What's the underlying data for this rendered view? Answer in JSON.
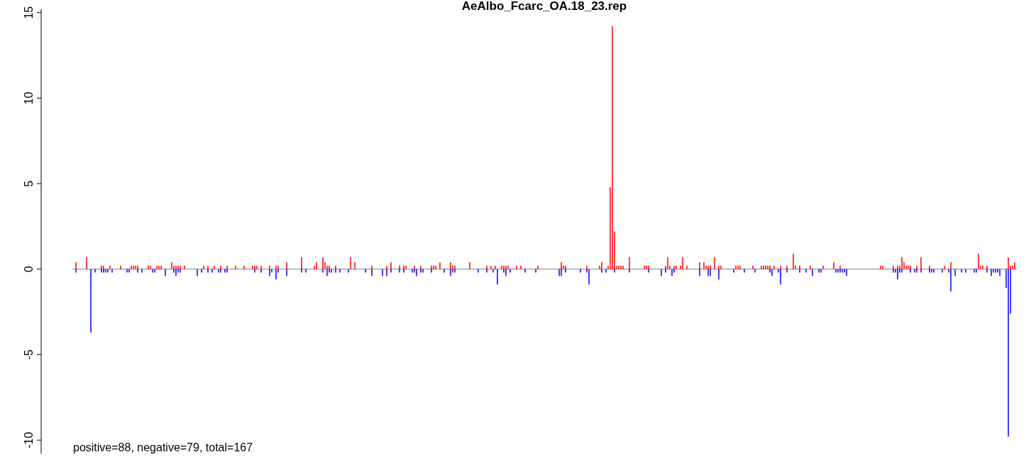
{
  "chart_data": {
    "type": "bar",
    "title": "AeAlbo_Fcarc_OA.18_23.rep",
    "annotations": [
      "positive=88, negative=79, total=167"
    ],
    "ylim": [
      -10.8,
      15.2
    ],
    "yticks": [
      -10,
      -5,
      0,
      5,
      10,
      15
    ],
    "ref_lines": [
      {
        "axis": "y",
        "value": 0,
        "color": "#808080"
      }
    ],
    "categories": [
      null,
      null,
      null,
      null,
      null,
      null,
      null,
      null,
      null,
      null,
      null,
      null,
      null,
      null,
      null,
      null,
      null,
      null,
      null,
      null,
      null,
      null,
      null,
      null,
      null,
      null,
      null,
      null,
      null,
      null,
      null,
      null,
      null,
      null,
      null,
      null,
      null,
      null,
      null,
      null,
      null,
      null,
      null,
      null,
      null,
      null,
      null,
      null,
      null,
      null,
      null,
      null,
      null,
      null,
      null,
      null,
      null,
      null,
      null,
      null,
      null,
      null,
      null,
      null,
      null,
      null,
      null,
      null,
      null,
      null,
      null,
      null,
      null,
      null,
      null,
      null,
      null,
      null,
      null,
      null,
      null,
      null,
      null,
      null,
      null,
      null,
      null,
      null,
      null,
      null,
      null,
      null,
      null,
      null,
      null,
      null,
      null,
      null,
      null,
      null,
      null,
      null,
      null,
      null,
      null,
      null,
      null,
      null,
      null,
      null,
      null,
      null,
      null,
      null,
      null,
      null,
      null,
      null,
      null,
      null,
      null,
      null,
      null,
      null,
      null,
      null,
      null,
      null,
      null,
      null,
      null,
      null,
      null,
      null,
      null,
      null,
      null,
      null,
      null,
      null,
      null,
      null,
      null,
      null,
      null,
      null,
      null,
      null,
      null,
      null,
      null,
      null,
      null,
      null,
      null,
      null,
      null,
      null,
      null,
      null,
      null,
      null,
      null,
      null,
      null,
      null,
      null,
      null,
      null,
      null,
      null,
      null,
      null,
      null,
      null,
      null,
      null,
      null,
      null,
      null,
      null,
      null,
      null,
      null,
      null,
      null,
      null,
      null,
      null,
      null,
      null,
      null,
      null,
      null,
      null,
      null,
      null,
      null,
      null,
      null,
      null,
      null,
      null,
      null,
      null,
      null,
      null,
      null,
      null,
      null,
      null,
      null,
      null,
      null,
      null,
      null,
      null,
      null,
      null,
      null,
      null,
      null,
      null,
      null,
      null,
      null,
      null,
      null,
      null,
      null,
      null,
      null,
      null,
      null,
      null,
      null,
      null,
      null,
      null,
      null,
      null,
      null,
      null,
      null,
      null,
      null,
      null,
      null,
      null,
      null,
      null,
      null,
      null,
      null,
      null,
      null,
      null,
      null,
      null,
      null,
      null,
      null,
      null,
      null,
      null,
      null,
      null,
      null,
      null,
      null,
      null,
      null,
      null,
      null,
      null,
      null,
      null,
      null,
      null,
      null,
      null,
      null,
      null,
      null,
      null,
      null,
      null,
      null,
      null,
      null,
      null,
      null,
      null,
      null,
      null,
      null,
      null,
      null,
      null,
      null,
      null,
      null,
      null,
      null,
      null,
      null,
      null,
      null,
      null,
      null,
      null,
      null,
      null,
      null,
      null,
      null,
      null,
      null,
      null,
      null,
      null,
      null,
      null,
      null,
      null,
      null,
      null,
      null,
      null,
      null,
      null,
      null,
      null,
      null,
      null,
      null,
      null,
      null,
      null,
      null,
      null,
      null,
      null,
      null,
      null,
      null,
      null,
      null,
      null,
      null,
      null,
      null,
      null,
      null,
      null,
      null,
      null,
      null,
      null,
      null,
      null,
      null,
      null,
      null,
      null,
      null,
      null,
      null,
      null,
      null,
      null,
      null,
      null,
      null,
      null,
      null,
      null,
      null,
      null,
      null,
      null,
      null,
      null,
      null,
      null,
      null,
      null,
      null,
      null,
      null,
      null,
      null,
      null,
      null,
      null,
      null,
      null,
      null,
      null,
      null,
      null,
      null,
      null,
      null,
      null,
      null,
      null,
      null,
      null,
      null,
      null,
      null,
      null,
      null,
      null,
      null,
      null,
      null,
      null,
      null,
      null,
      null,
      null,
      null,
      null,
      null,
      null,
      null,
      null,
      null,
      null,
      null,
      null,
      null,
      null,
      null,
      null,
      null,
      null,
      null,
      null,
      null,
      null
    ],
    "series": [
      {
        "color": "#ff0000",
        "values": [
          null,
          0.4,
          null,
          null,
          null,
          null,
          0.7,
          null,
          null,
          null,
          null,
          null,
          null,
          0.2,
          0.2,
          null,
          null,
          0.2,
          null,
          null,
          null,
          null,
          0.2,
          null,
          null,
          null,
          null,
          0.2,
          0.2,
          0.2,
          0.2,
          null,
          null,
          null,
          null,
          0.2,
          0.2,
          null,
          null,
          0.2,
          0.2,
          0.2,
          null,
          null,
          null,
          null,
          0.4,
          0.2,
          0.2,
          0.2,
          0.2,
          null,
          0.2,
          null,
          null,
          null,
          null,
          null,
          null,
          null,
          null,
          0.2,
          null,
          0.2,
          null,
          null,
          0.2,
          null,
          null,
          0.2,
          null,
          null,
          0.2,
          null,
          null,
          null,
          0.2,
          null,
          null,
          null,
          0.2,
          null,
          null,
          null,
          0.2,
          0.2,
          0.2,
          null,
          0.2,
          null,
          null,
          null,
          0.2,
          null,
          null,
          0.2,
          0.2,
          null,
          null,
          null,
          0.4,
          null,
          null,
          null,
          null,
          null,
          null,
          0.7,
          null,
          null,
          null,
          null,
          null,
          0.2,
          0.4,
          null,
          null,
          0.7,
          0.4,
          0.2,
          0.2,
          null,
          null,
          0.2,
          null,
          null,
          null,
          null,
          null,
          null,
          0.7,
          null,
          0.4,
          null,
          null,
          null,
          null,
          null,
          null,
          null,
          0.2,
          null,
          null,
          null,
          null,
          null,
          null,
          0.2,
          null,
          0.4,
          null,
          null,
          null,
          0.2,
          null,
          0.2,
          0.2,
          null,
          null,
          null,
          0.2,
          null,
          null,
          0.2,
          null,
          null,
          null,
          null,
          0.2,
          0.2,
          0.2,
          null,
          0.4,
          null,
          null,
          null,
          null,
          0.4,
          0.2,
          0.2,
          null,
          null,
          null,
          null,
          null,
          null,
          0.4,
          null,
          null,
          null,
          null,
          null,
          null,
          null,
          0.2,
          null,
          0.2,
          null,
          0.2,
          null,
          null,
          0.2,
          0.2,
          0.2,
          0.2,
          null,
          null,
          null,
          0.2,
          null,
          0.2,
          null,
          null,
          null,
          null,
          null,
          null,
          null,
          0.2,
          null,
          null,
          null,
          null,
          null,
          null,
          null,
          null,
          null,
          null,
          0.4,
          0.2,
          0.2,
          null,
          null,
          null,
          null,
          null,
          null,
          null,
          null,
          null,
          0.2,
          null,
          null,
          null,
          null,
          null,
          0.2,
          0.4,
          null,
          null,
          0.2,
          4.8,
          14.2,
          2.2,
          0.2,
          0.2,
          0.2,
          0.2,
          null,
          null,
          0.7,
          null,
          null,
          null,
          null,
          null,
          null,
          0.2,
          0.2,
          0.2,
          null,
          null,
          null,
          null,
          null,
          null,
          null,
          0.2,
          0.7,
          0.2,
          null,
          0.2,
          0.2,
          null,
          0.2,
          0.7,
          null,
          0.2,
          null,
          null,
          null,
          null,
          null,
          0.4,
          null,
          0.4,
          0.2,
          0.2,
          0.2,
          null,
          0.7,
          null,
          0.2,
          0.2,
          null,
          null,
          null,
          null,
          null,
          null,
          0.2,
          0.2,
          0.2,
          null,
          null,
          null,
          null,
          null,
          0.2,
          null,
          null,
          null,
          0.2,
          0.2,
          0.2,
          0.2,
          0.2,
          null,
          0.2,
          null,
          null,
          0.2,
          null,
          null,
          0.2,
          null,
          null,
          0.9,
          0.2,
          null,
          0.2,
          null,
          null,
          null,
          null,
          0.2,
          null,
          null,
          null,
          null,
          null,
          0.2,
          null,
          null,
          null,
          null,
          0.4,
          null,
          null,
          0.2,
          null,
          null,
          null,
          null,
          null,
          null,
          null,
          null,
          null,
          null,
          null,
          null,
          null,
          null,
          null,
          null,
          null,
          null,
          0.2,
          0.2,
          null,
          null,
          null,
          null,
          0.2,
          null,
          0.2,
          0.2,
          0.7,
          0.4,
          0.2,
          0.2,
          0.2,
          null,
          null,
          0.2,
          null,
          0.7,
          null,
          null,
          null,
          0.2,
          null,
          null,
          null,
          null,
          null,
          null,
          0.2,
          null,
          null,
          0.4,
          null,
          null,
          null,
          null,
          null,
          null,
          null,
          null,
          null,
          null,
          null,
          null,
          0.9,
          0.2,
          0.2,
          null,
          0.2,
          null,
          null,
          null,
          null,
          null,
          null,
          null,
          null,
          null,
          0.7,
          0.2,
          0.2,
          0.4
        ]
      },
      {
        "color": "#0000ff",
        "values": [
          null,
          -0.2,
          null,
          null,
          null,
          null,
          null,
          null,
          -3.7,
          null,
          -0.2,
          null,
          null,
          -0.2,
          -0.2,
          -0.2,
          -0.2,
          null,
          -0.2,
          null,
          null,
          null,
          null,
          null,
          null,
          -0.2,
          -0.2,
          null,
          null,
          null,
          -0.2,
          null,
          -0.2,
          null,
          null,
          null,
          null,
          -0.2,
          -0.2,
          null,
          null,
          null,
          null,
          -0.4,
          null,
          null,
          null,
          -0.2,
          -0.4,
          -0.2,
          -0.2,
          null,
          null,
          null,
          null,
          null,
          null,
          null,
          -0.4,
          null,
          -0.2,
          null,
          null,
          -0.2,
          null,
          -0.2,
          null,
          null,
          -0.2,
          -0.2,
          null,
          -0.2,
          -0.2,
          null,
          null,
          null,
          null,
          null,
          null,
          null,
          null,
          null,
          null,
          null,
          null,
          -0.2,
          null,
          null,
          -0.2,
          null,
          null,
          null,
          -0.4,
          -0.2,
          null,
          -0.6,
          -0.2,
          null,
          null,
          null,
          -0.4,
          null,
          null,
          null,
          null,
          null,
          null,
          -0.2,
          null,
          -0.2,
          null,
          null,
          null,
          null,
          null,
          null,
          null,
          -0.2,
          null,
          -0.4,
          -0.2,
          -0.2,
          null,
          -0.2,
          null,
          -0.2,
          null,
          null,
          null,
          -0.2,
          null,
          null,
          null,
          null,
          null,
          null,
          null,
          -0.2,
          null,
          null,
          -0.4,
          null,
          null,
          null,
          null,
          -0.4,
          null,
          -0.4,
          null,
          -0.2,
          null,
          null,
          null,
          -0.2,
          null,
          -0.2,
          null,
          null,
          null,
          -0.2,
          -0.2,
          -0.4,
          null,
          -0.2,
          -0.2,
          null,
          null,
          null,
          -0.2,
          null,
          null,
          null,
          null,
          null,
          -0.2,
          null,
          null,
          -0.4,
          -0.2,
          -0.2,
          null,
          null,
          null,
          null,
          null,
          null,
          null,
          null,
          null,
          null,
          -0.2,
          null,
          null,
          null,
          -0.2,
          null,
          null,
          -0.2,
          null,
          -0.9,
          null,
          null,
          -0.2,
          -0.4,
          null,
          -0.2,
          null,
          null,
          null,
          null,
          null,
          null,
          -0.2,
          null,
          null,
          null,
          null,
          -0.2,
          null,
          null,
          null,
          null,
          null,
          null,
          null,
          null,
          null,
          null,
          -0.4,
          -0.4,
          null,
          -0.2,
          null,
          null,
          null,
          null,
          null,
          null,
          -0.2,
          null,
          null,
          -0.2,
          -0.9,
          null,
          null,
          null,
          null,
          null,
          -0.2,
          null,
          -0.2,
          null,
          null,
          null,
          -0.2,
          null,
          null,
          null,
          null,
          null,
          null,
          -0.2,
          null,
          null,
          null,
          null,
          null,
          null,
          null,
          null,
          -0.2,
          null,
          null,
          null,
          null,
          null,
          -0.4,
          null,
          -0.2,
          null,
          null,
          -0.4,
          -0.2,
          null,
          null,
          null,
          null,
          null,
          null,
          null,
          null,
          null,
          null,
          null,
          -0.4,
          null,
          null,
          null,
          -0.4,
          -0.4,
          null,
          null,
          null,
          -0.6,
          null,
          null,
          null,
          null,
          null,
          null,
          -0.2,
          null,
          null,
          null,
          null,
          -0.2,
          null,
          null,
          null,
          null,
          -0.2,
          null,
          null,
          null,
          null,
          null,
          null,
          -0.2,
          -0.4,
          null,
          null,
          -0.2,
          -0.9,
          null,
          null,
          -0.2,
          null,
          null,
          null,
          null,
          null,
          -0.2,
          null,
          null,
          -0.2,
          null,
          null,
          -0.4,
          null,
          null,
          -0.2,
          -0.2,
          null,
          null,
          null,
          null,
          null,
          null,
          -0.2,
          -0.2,
          -0.2,
          -0.2,
          -0.2,
          -0.4,
          null,
          null,
          null,
          null,
          null,
          null,
          null,
          null,
          null,
          null,
          null,
          null,
          null,
          null,
          null,
          null,
          null,
          null,
          null,
          null,
          null,
          -0.2,
          -0.2,
          -0.6,
          -0.2,
          -0.2,
          null,
          null,
          null,
          -0.2,
          null,
          -0.2,
          -0.2,
          null,
          -0.2,
          null,
          null,
          null,
          -0.2,
          -0.2,
          -0.2,
          null,
          null,
          null,
          -0.2,
          null,
          null,
          -0.2,
          -1.3,
          null,
          -0.4,
          null,
          null,
          -0.2,
          null,
          -0.2,
          null,
          null,
          null,
          -0.2,
          -0.2,
          null,
          null,
          null,
          null,
          -0.2,
          null,
          -0.4,
          -0.2,
          -0.2,
          -0.2,
          -0.4,
          null,
          null,
          -1.1,
          -9.8,
          -2.6,
          null,
          null
        ]
      }
    ]
  }
}
